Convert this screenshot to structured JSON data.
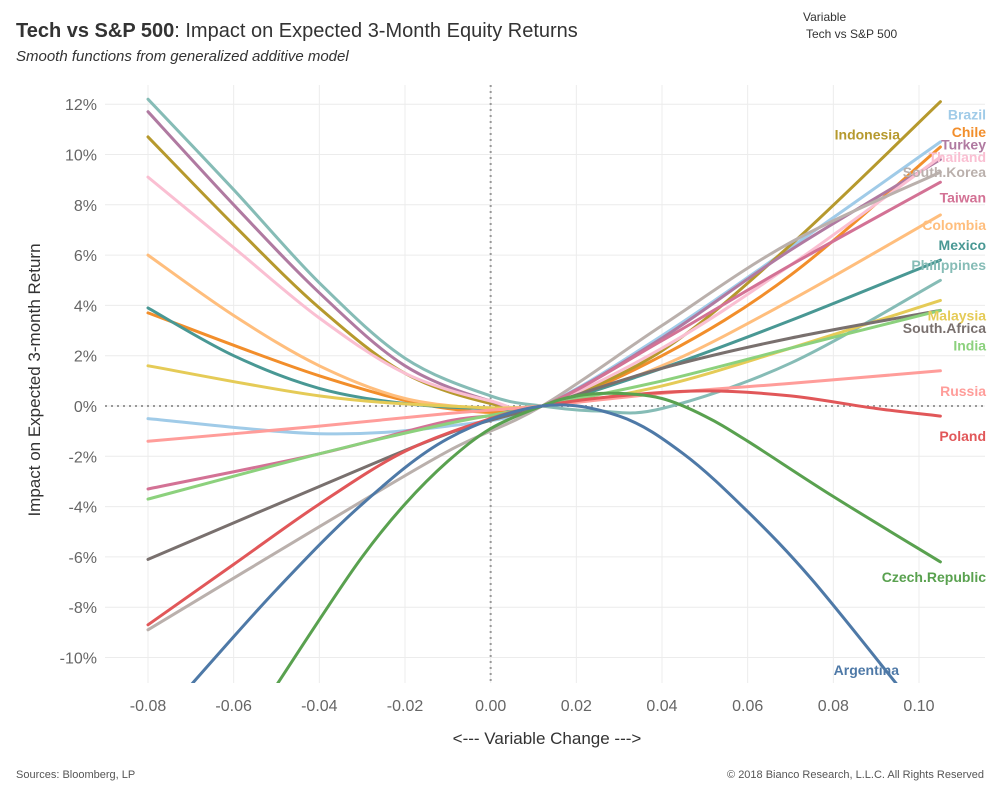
{
  "header": {
    "title_bold": "Tech vs S&P 500",
    "title_rest": ": Impact on Expected 3-Month Equity Returns",
    "subtitle": "Smooth functions from generalized additive model"
  },
  "filter": {
    "label": "Variable",
    "value": "Tech vs S&P 500"
  },
  "footer": {
    "source": "Sources: Bloomberg, LP",
    "copyright": "© 2018 Bianco Research, L.L.C. All Rights Reserved"
  },
  "chart_data": {
    "type": "line",
    "xlabel": "<--- Variable Change --->",
    "ylabel": "Impact on Expected 3-month Return",
    "xlim": [
      -0.09,
      0.11
    ],
    "ylim": [
      -11.1,
      12.4
    ],
    "x_ticks": [
      -0.08,
      -0.06,
      -0.04,
      -0.02,
      0.0,
      0.02,
      0.04,
      0.06,
      0.08,
      0.1
    ],
    "x_tick_labels": [
      "-0.08",
      "-0.06",
      "-0.04",
      "-0.02",
      "0.00",
      "0.02",
      "0.04",
      "0.06",
      "0.08",
      "0.10"
    ],
    "y_ticks": [
      12,
      10,
      8,
      6,
      4,
      2,
      0,
      -2,
      -4,
      -6,
      -8,
      -10
    ],
    "y_tick_labels": [
      "12%",
      "10%",
      "8%",
      "6%",
      "4%",
      "2%",
      "0%",
      "-2%",
      "-4%",
      "-6%",
      "-8%",
      "-10%"
    ],
    "reference_lines": {
      "x": 0.0,
      "y": 0.0
    },
    "grid": true,
    "series": [
      {
        "name": "Brazil",
        "color": "#a0cbe8",
        "x": [
          -0.08,
          -0.04,
          -0.01,
          0.012,
          0.04,
          0.07,
          0.105
        ],
        "y": [
          -0.5,
          -1.1,
          -0.8,
          0.0,
          2.8,
          6.3,
          10.5
        ],
        "label_y": 11.6
      },
      {
        "name": "Chile",
        "color": "#f28e2b",
        "x": [
          -0.08,
          -0.04,
          -0.01,
          0.012,
          0.04,
          0.07,
          0.105
        ],
        "y": [
          3.7,
          1.2,
          -0.1,
          0.0,
          2.0,
          5.2,
          10.3
        ],
        "label_y": 10.9
      },
      {
        "name": "Indonesia",
        "color": "#b6992d",
        "x": [
          -0.08,
          -0.06,
          -0.04,
          -0.02,
          0.0,
          0.012,
          0.04,
          0.07,
          0.105
        ],
        "y": [
          10.7,
          7.2,
          3.9,
          1.3,
          0.1,
          0.0,
          2.2,
          6.4,
          12.1
        ],
        "label_y": 10.8
      },
      {
        "name": "Turkey",
        "color": "#b07aa1",
        "x": [
          -0.08,
          -0.06,
          -0.04,
          -0.02,
          0.0,
          0.012,
          0.04,
          0.07,
          0.105
        ],
        "y": [
          11.7,
          8.0,
          4.5,
          1.6,
          0.2,
          0.0,
          2.7,
          6.2,
          9.8
        ],
        "label_y": 10.4
      },
      {
        "name": "Thailand",
        "color": "#fabfd2",
        "x": [
          -0.08,
          -0.06,
          -0.04,
          -0.02,
          0.0,
          0.012,
          0.04,
          0.07,
          0.105
        ],
        "y": [
          9.1,
          6.3,
          3.5,
          1.3,
          0.2,
          0.0,
          2.3,
          5.6,
          9.9
        ],
        "label_y": 9.9
      },
      {
        "name": "South.Korea",
        "color": "#bab0ac",
        "x": [
          -0.08,
          -0.04,
          -0.01,
          0.012,
          0.04,
          0.07,
          0.105
        ],
        "y": [
          -8.9,
          -4.8,
          -1.8,
          0.0,
          3.2,
          6.5,
          9.3
        ],
        "label_y": 9.3
      },
      {
        "name": "Taiwan",
        "color": "#d37295",
        "x": [
          -0.08,
          -0.04,
          -0.01,
          0.012,
          0.04,
          0.07,
          0.105
        ],
        "y": [
          -3.3,
          -1.9,
          -0.6,
          0.0,
          2.6,
          5.6,
          8.9
        ],
        "label_y": 8.3
      },
      {
        "name": "Colombia",
        "color": "#ffbe7d",
        "x": [
          -0.08,
          -0.06,
          -0.04,
          -0.02,
          0.0,
          0.012,
          0.04,
          0.07,
          0.105
        ],
        "y": [
          6.0,
          3.6,
          1.6,
          0.3,
          -0.1,
          0.0,
          1.6,
          4.2,
          7.6
        ],
        "label_y": 7.2
      },
      {
        "name": "Mexico",
        "color": "#499894",
        "x": [
          -0.08,
          -0.06,
          -0.04,
          -0.02,
          0.0,
          0.012,
          0.04,
          0.07,
          0.105
        ],
        "y": [
          3.9,
          2.0,
          0.7,
          0.1,
          -0.1,
          0.0,
          1.5,
          3.4,
          5.8
        ],
        "label_y": 6.4
      },
      {
        "name": "Philippines",
        "color": "#86bcb6",
        "x": [
          -0.08,
          -0.06,
          -0.04,
          -0.02,
          0.0,
          0.012,
          0.025,
          0.04,
          0.07,
          0.105
        ],
        "y": [
          12.2,
          8.6,
          4.9,
          1.9,
          0.4,
          0.0,
          -0.2,
          -0.1,
          1.7,
          5.0
        ],
        "label_y": 5.6
      },
      {
        "name": "Malaysia",
        "color": "#e5cb57",
        "x": [
          -0.08,
          -0.04,
          -0.01,
          0.012,
          0.04,
          0.07,
          0.105
        ],
        "y": [
          1.6,
          0.4,
          0.0,
          0.0,
          0.8,
          2.3,
          4.2
        ],
        "label_y": 3.6
      },
      {
        "name": "South.Africa",
        "color": "#79706e",
        "x": [
          -0.08,
          -0.04,
          -0.01,
          0.012,
          0.04,
          0.07,
          0.105
        ],
        "y": [
          -6.1,
          -3.2,
          -1.1,
          0.0,
          1.5,
          2.7,
          3.8
        ],
        "label_y": 3.1
      },
      {
        "name": "India",
        "color": "#8cd17d",
        "x": [
          -0.08,
          -0.04,
          -0.01,
          0.012,
          0.04,
          0.07,
          0.105
        ],
        "y": [
          -3.7,
          -1.9,
          -0.7,
          0.0,
          1.0,
          2.3,
          3.8
        ],
        "label_y": 2.4
      },
      {
        "name": "Russia",
        "color": "#ff9d9a",
        "x": [
          -0.08,
          -0.04,
          -0.01,
          0.012,
          0.04,
          0.07,
          0.105
        ],
        "y": [
          -1.4,
          -0.8,
          -0.3,
          0.0,
          0.5,
          0.9,
          1.4
        ],
        "label_y": 0.6
      },
      {
        "name": "Poland",
        "color": "#e15759",
        "x": [
          -0.08,
          -0.06,
          -0.04,
          -0.02,
          0.0,
          0.012,
          0.03,
          0.05,
          0.07,
          0.09,
          0.105
        ],
        "y": [
          -8.7,
          -6.3,
          -3.9,
          -1.8,
          -0.5,
          0.0,
          0.4,
          0.6,
          0.4,
          -0.1,
          -0.4
        ],
        "label_y": -1.2
      },
      {
        "name": "Czech.Republic",
        "color": "#59a14f",
        "x": [
          -0.05,
          -0.04,
          -0.03,
          -0.02,
          -0.01,
          0.0,
          0.012,
          0.02,
          0.03,
          0.04,
          0.05,
          0.06,
          0.08,
          0.105
        ],
        "y": [
          -11.1,
          -8.5,
          -6.0,
          -3.9,
          -2.2,
          -0.9,
          0.0,
          0.4,
          0.5,
          0.3,
          -0.4,
          -1.4,
          -3.6,
          -6.2
        ],
        "label_y": -6.8
      },
      {
        "name": "Argentina",
        "color": "#4e79a7",
        "x": [
          -0.07,
          -0.05,
          -0.03,
          -0.01,
          0.012,
          0.03,
          0.045,
          0.06,
          0.075,
          0.095
        ],
        "y": [
          -11.1,
          -7.3,
          -3.9,
          -1.3,
          0.0,
          -0.4,
          -1.9,
          -4.2,
          -6.9,
          -11.1
        ],
        "label_y": -10.5
      }
    ]
  }
}
